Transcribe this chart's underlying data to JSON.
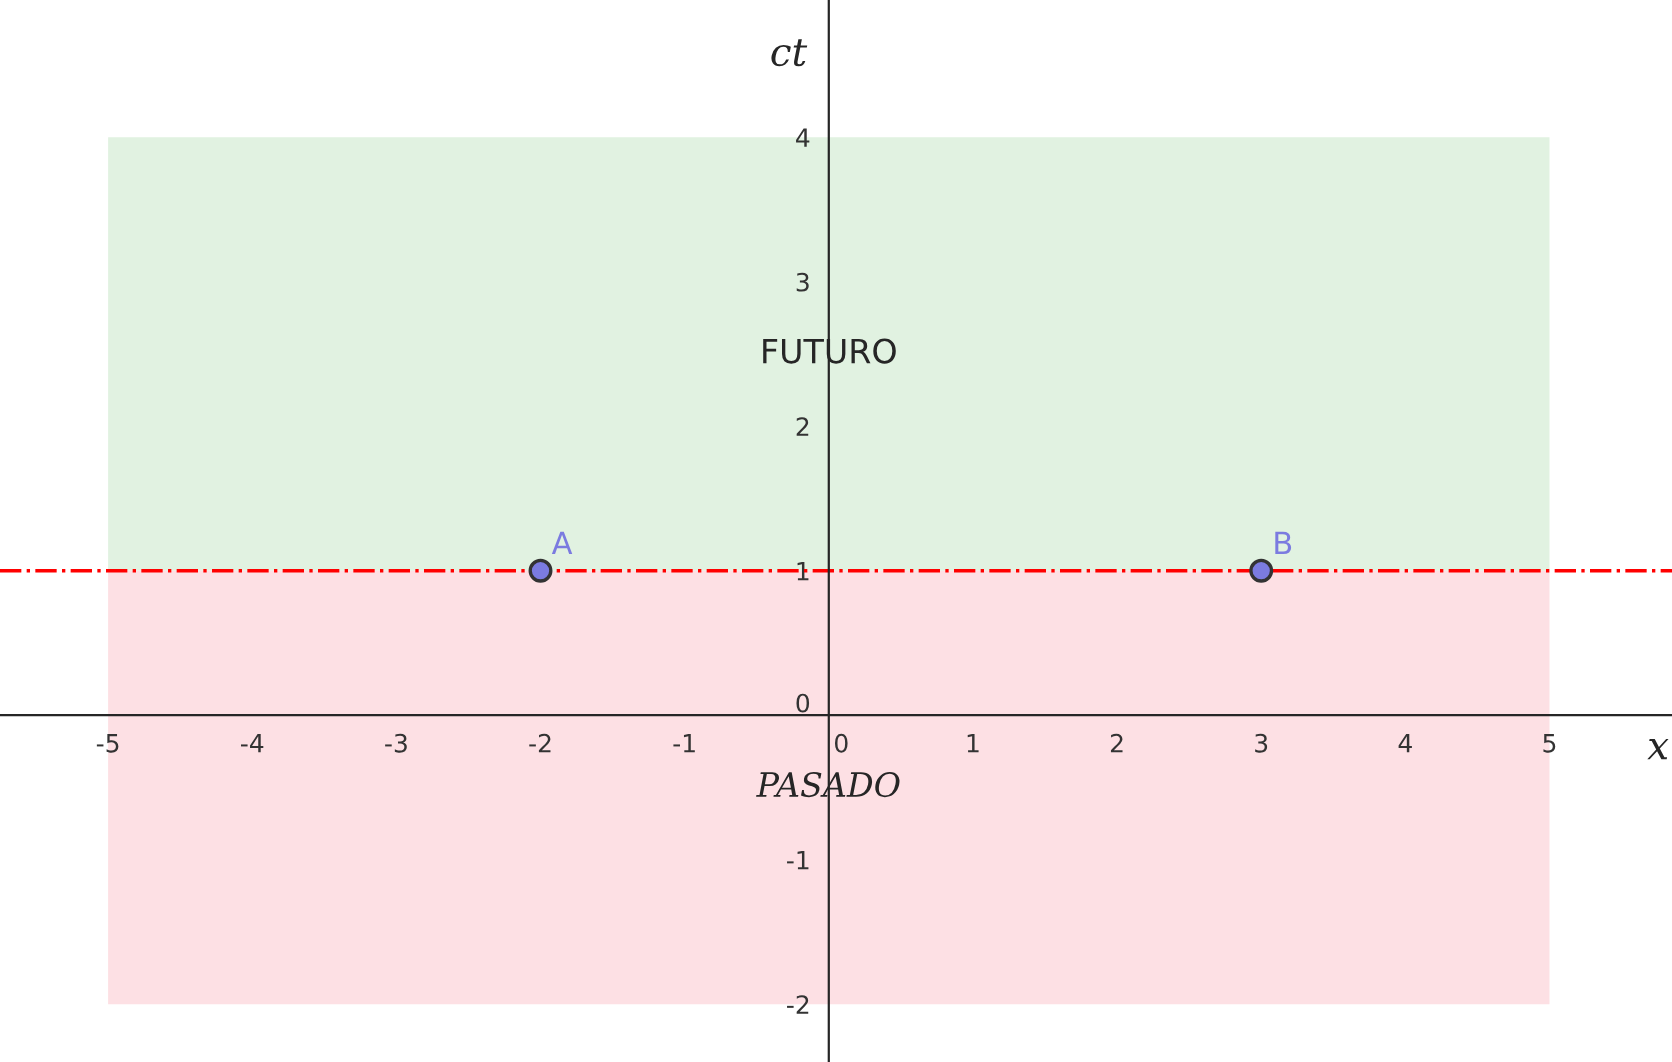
{
  "chart_data": {
    "type": "scatter",
    "xlabel": "x",
    "ylabel": "ct",
    "x": [
      -2,
      3
    ],
    "series": [
      {
        "color": "#7b7be0",
        "values": [
          1,
          1
        ]
      }
    ],
    "marker": "circle",
    "annotations": [
      {
        "text": "A",
        "x": -2,
        "y": 1
      },
      {
        "text": "B",
        "x": 3,
        "y": 1
      }
    ],
    "ref_lines": [
      {
        "axis": "y",
        "value": 1,
        "color": "#ff0000",
        "line_style": "dashdot"
      }
    ],
    "bands": [
      {
        "axis": "y",
        "from": 1,
        "to": 4,
        "label": "FUTURO",
        "color": "#e1f2e1"
      },
      {
        "axis": "y",
        "from": -2,
        "to": 1,
        "label": "PASADO",
        "color": "#fde0e4"
      }
    ],
    "xlim": [
      -5.75,
      5.85
    ],
    "ylim": [
      -2.4,
      4.95
    ],
    "xticks": [
      -5,
      -4,
      -3,
      -2,
      -1,
      0,
      1,
      2,
      3,
      4,
      5
    ],
    "yticks": [
      -2,
      -1,
      0,
      1,
      2,
      3,
      4
    ],
    "grid": false,
    "legend": false
  }
}
